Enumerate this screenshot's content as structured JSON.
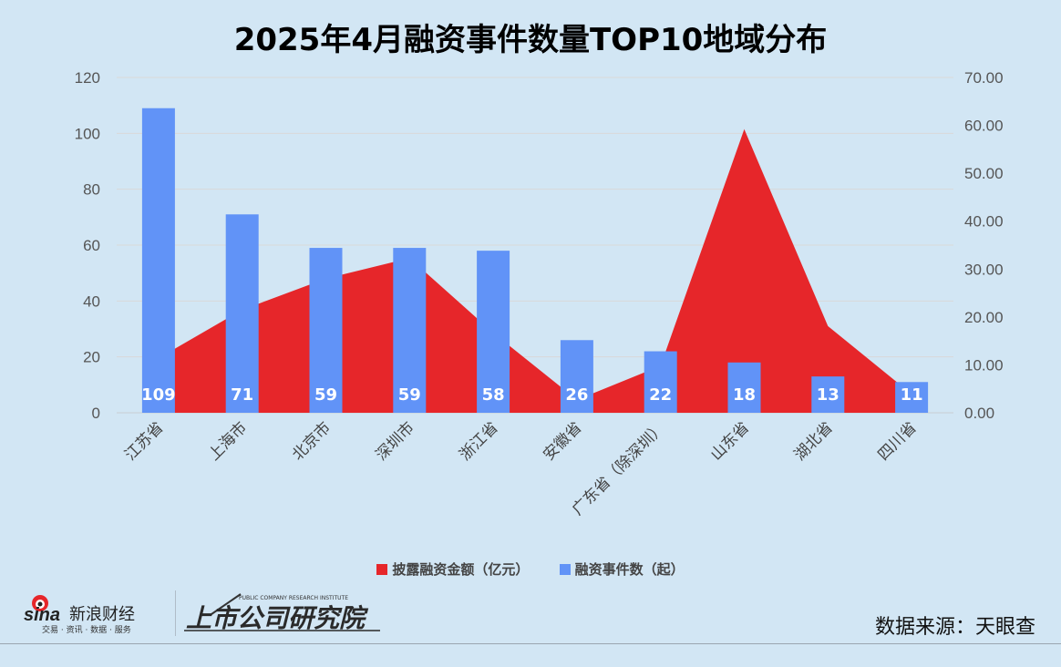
{
  "chart_data": {
    "type": "bar+area",
    "title": "2025年4月融资事件数量TOP10地域分布",
    "categories": [
      "江苏省",
      "上海市",
      "北京市",
      "深圳市",
      "浙江省",
      "安徽省",
      "广东省（除深圳）",
      "山东省",
      "湖北省",
      "四川省"
    ],
    "series": [
      {
        "name": "披露融资金额（亿元）",
        "type": "area",
        "axis": "right",
        "color": "#e6262a",
        "values": [
          11.4,
          21.5,
          28.0,
          32.3,
          16.7,
          2.7,
          9.8,
          59.2,
          18.1,
          3.9
        ]
      },
      {
        "name": "融资事件数（起）",
        "type": "bar",
        "axis": "left",
        "color": "#6193f7",
        "values": [
          109,
          71,
          59,
          59,
          58,
          26,
          22,
          18,
          13,
          11
        ]
      }
    ],
    "left_axis": {
      "min": 0,
      "max": 120,
      "ticks": [
        "0",
        "20",
        "40",
        "60",
        "80",
        "100",
        "120"
      ]
    },
    "right_axis": {
      "min": 0,
      "max": 70,
      "ticks": [
        "0.00",
        "10.00",
        "20.00",
        "30.00",
        "40.00",
        "50.00",
        "60.00",
        "70.00"
      ]
    },
    "grid": true,
    "legend_position": "bottom"
  },
  "footer": {
    "source": "数据来源：天眼查",
    "sina_logo": "sina新浪财经",
    "sina_tagline": "交易 · 资讯 · 数据 · 服务",
    "institute_logo": "上市公司研究院",
    "institute_subtitle": "PUBLIC COMPANY RESEARCH INSTITUTE"
  }
}
